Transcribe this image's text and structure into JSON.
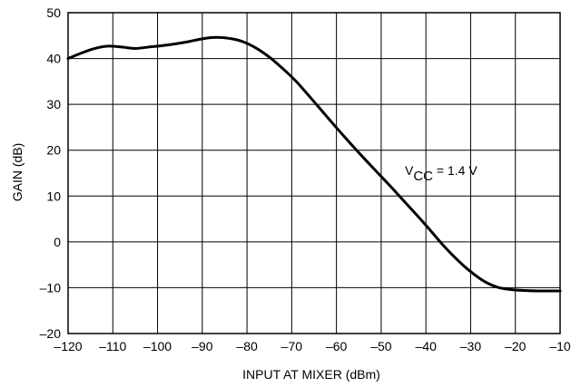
{
  "chart_data": {
    "type": "line",
    "title": "",
    "xlabel": "INPUT AT MIXER (dBm)",
    "ylabel": "GAIN (dB)",
    "xlim": [
      -120,
      -10
    ],
    "ylim": [
      -20,
      50
    ],
    "xticks": [
      -120,
      -110,
      -100,
      -90,
      -80,
      -70,
      -60,
      -50,
      -40,
      -30,
      -20,
      -10
    ],
    "yticks": [
      -20,
      -10,
      0,
      10,
      20,
      30,
      40,
      50
    ],
    "xtick_labels": [
      "–120",
      "–110",
      "–100",
      "–90",
      "–80",
      "–70",
      "–60",
      "–50",
      "–40",
      "–30",
      "–20",
      "–10"
    ],
    "ytick_labels": [
      "–20",
      "–10",
      "0",
      "10",
      "20",
      "30",
      "40",
      "50"
    ],
    "grid": true,
    "annotation": {
      "prefix": "V",
      "subscript": "CC",
      "suffix": " = 1.4 V"
    },
    "line_color": "#000000",
    "series": [
      {
        "x": [
          -120,
          -117,
          -114,
          -111,
          -108,
          -105,
          -102,
          -99,
          -96,
          -93,
          -90,
          -87,
          -84,
          -81,
          -78,
          -75,
          -72,
          -69,
          -66,
          -63,
          -60,
          -57,
          -54,
          -51,
          -48,
          -45,
          -42,
          -39,
          -36,
          -33,
          -30,
          -27,
          -24,
          -21,
          -18,
          -15,
          -12,
          -10
        ],
        "y": [
          40.0,
          41.2,
          42.2,
          42.7,
          42.5,
          42.2,
          42.5,
          42.8,
          43.2,
          43.7,
          44.3,
          44.6,
          44.4,
          43.7,
          42.3,
          40.3,
          37.8,
          35.0,
          31.7,
          28.3,
          24.9,
          21.6,
          18.4,
          15.3,
          12.2,
          9.0,
          5.8,
          2.5,
          -0.9,
          -3.9,
          -6.5,
          -8.6,
          -9.9,
          -10.4,
          -10.6,
          -10.7,
          -10.7,
          -10.7
        ]
      }
    ]
  }
}
